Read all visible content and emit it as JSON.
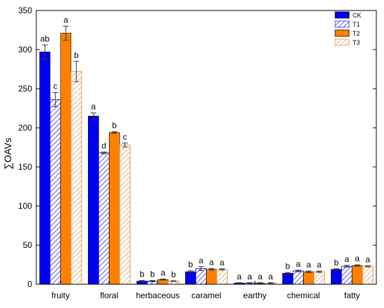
{
  "chart_data": {
    "type": "bar",
    "title": "",
    "xlabel": "",
    "ylabel": "∑OAVs",
    "ylim": [
      0,
      350
    ],
    "yticks": [
      0,
      50,
      100,
      150,
      200,
      250,
      300,
      350
    ],
    "categories": [
      "fruity",
      "floral",
      "herbaceous",
      "caramel",
      "earthy",
      "chemical",
      "fatty"
    ],
    "legend_position": "top-right",
    "series": [
      {
        "name": "CK",
        "pattern": "solid",
        "color": "#0000ee",
        "values": [
          297,
          215,
          4,
          16,
          1.5,
          14,
          19
        ],
        "errors": [
          9,
          4,
          0.8,
          1.2,
          0.5,
          1,
          0.8
        ],
        "letters": [
          "ab",
          "a",
          "b",
          "b",
          "a",
          "b",
          "b"
        ]
      },
      {
        "name": "T1",
        "pattern": "hatch",
        "color": "#2b2bd9",
        "values": [
          236,
          168,
          4,
          20,
          1.5,
          17,
          23
        ],
        "errors": [
          9,
          1,
          0.8,
          2.5,
          0.5,
          1,
          1.2
        ],
        "letters": [
          "c",
          "d",
          "b",
          "a",
          "a",
          "a",
          "a"
        ]
      },
      {
        "name": "T2",
        "pattern": "solid",
        "color": "#ff8000",
        "values": [
          321,
          194,
          6,
          19,
          1.5,
          16,
          24
        ],
        "errors": [
          9,
          1,
          0.6,
          1,
          0.5,
          1,
          0.8
        ],
        "letters": [
          "a",
          "b",
          "a",
          "a",
          "a",
          "a",
          "a"
        ]
      },
      {
        "name": "T3",
        "pattern": "hatch",
        "color": "#e39b5a",
        "values": [
          272,
          178,
          4,
          19,
          1.5,
          16,
          23
        ],
        "errors": [
          13,
          2.5,
          0.5,
          0.8,
          0.5,
          0.8,
          0.8
        ],
        "letters": [
          "b",
          "c",
          "b",
          "a",
          "a",
          "a",
          "a"
        ]
      }
    ]
  }
}
